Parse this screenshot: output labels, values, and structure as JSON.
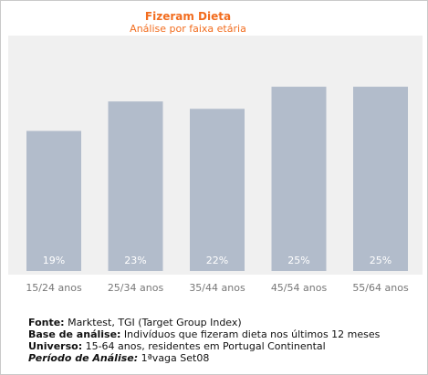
{
  "chart_data": {
    "type": "bar",
    "title": "Fizeram Dieta",
    "subtitle": "Análise por faixa etária",
    "categories": [
      "15/24 anos",
      "25/34 anos",
      "35/44 anos",
      "45/54 anos",
      "55/64 anos"
    ],
    "values": [
      19,
      23,
      22,
      25,
      25
    ],
    "value_labels": [
      "19%",
      "23%",
      "22%",
      "25%",
      "25%"
    ],
    "ylim": [
      0,
      25.5
    ],
    "grid": false,
    "legend": "none",
    "colors": {
      "bar": "#b2bccb",
      "plot_bg": "#f0f0f0",
      "title": "#f26d1f",
      "value_label": "#ffffff",
      "tick": "#777777"
    }
  },
  "footer": {
    "fonte_label": "Fonte:",
    "fonte_value": " Marktest, TGI (Target Group Index)",
    "base_label": "Base de análise:",
    "base_value": " Indivíduos que fizeram dieta nos últimos 12 meses",
    "universo_label": "Universo:",
    "universo_value": " 15-64 anos, residentes em Portugal Continental",
    "periodo_label": "Período de Análise:",
    "periodo_value": " 1ªvaga Set08"
  }
}
